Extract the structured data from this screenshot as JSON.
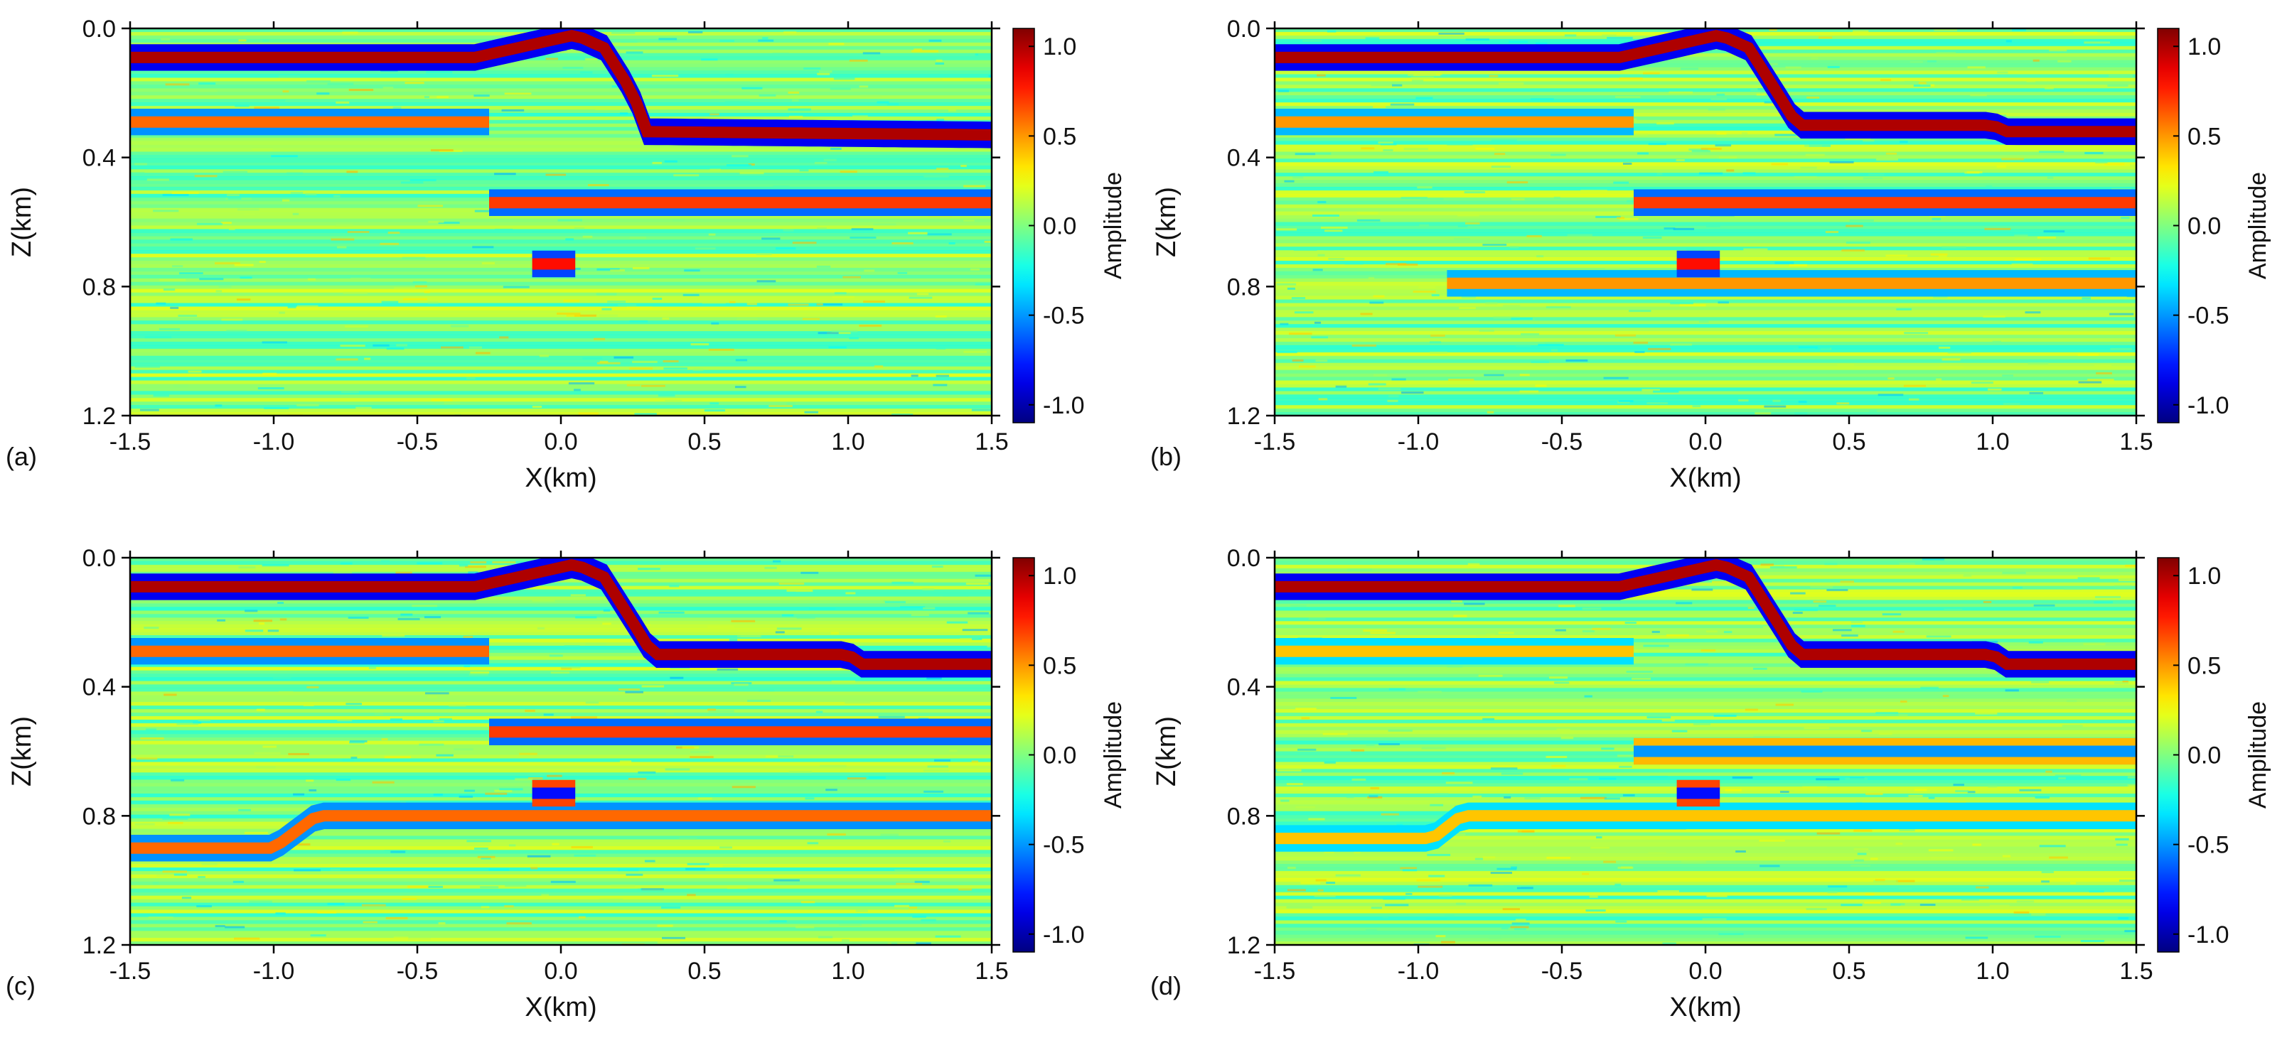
{
  "chart_data": [
    {
      "type": "heatmap",
      "panel_label": "(a)",
      "xlabel": "X(km)",
      "ylabel": "Z(km)",
      "xlim": [
        -1.5,
        1.5
      ],
      "ylim": [
        0.0,
        1.2
      ],
      "x_ticks": [
        "-1.5",
        "-1.0",
        "-0.5",
        "0.0",
        "0.5",
        "1.0",
        "1.5"
      ],
      "y_ticks": [
        "0.0",
        "0.4",
        "0.8",
        "1.2"
      ],
      "colorbar": {
        "label": "Amplitude",
        "range": [
          -1.1,
          1.1
        ],
        "ticks": [
          "1.0",
          "0.5",
          "0.0",
          "-0.5",
          "-1.0"
        ],
        "colormap": "jet"
      },
      "reflectors": [
        {
          "description": "shallow dipping reflector",
          "points": [
            [
              -1.5,
              0.09
            ],
            [
              -0.3,
              0.09
            ],
            [
              -0.1,
              0.05
            ],
            [
              0.05,
              0.02
            ],
            [
              0.15,
              0.06
            ],
            [
              0.25,
              0.2
            ],
            [
              0.3,
              0.32
            ],
            [
              1.5,
              0.33
            ]
          ],
          "amplitude": 1.0
        },
        {
          "description": "reflector below interface",
          "x": [
            -1.5,
            -0.25
          ],
          "z": 0.29,
          "amplitude": 0.6
        },
        {
          "description": "deep flat reflector",
          "x": [
            -0.25,
            1.5
          ],
          "z": 0.54,
          "amplitude": 0.7
        },
        {
          "description": "small lens",
          "x": [
            -0.1,
            0.05
          ],
          "z": 0.73,
          "amplitude": 0.8
        }
      ]
    },
    {
      "type": "heatmap",
      "panel_label": "(b)",
      "xlabel": "X(km)",
      "ylabel": "Z(km)",
      "xlim": [
        -1.5,
        1.5
      ],
      "ylim": [
        0.0,
        1.2
      ],
      "x_ticks": [
        "-1.5",
        "-1.0",
        "-0.5",
        "0.0",
        "0.5",
        "1.0",
        "1.5"
      ],
      "y_ticks": [
        "0.0",
        "0.4",
        "0.8",
        "1.2"
      ],
      "colorbar": {
        "label": "Amplitude",
        "range": [
          -1.1,
          1.1
        ],
        "ticks": [
          "1.0",
          "0.5",
          "0.0",
          "-0.5",
          "-1.0"
        ],
        "colormap": "jet"
      },
      "reflectors": [
        {
          "description": "shallow dipping reflector",
          "points": [
            [
              -1.5,
              0.09
            ],
            [
              -0.3,
              0.09
            ],
            [
              -0.1,
              0.05
            ],
            [
              0.05,
              0.02
            ],
            [
              0.15,
              0.06
            ],
            [
              0.25,
              0.2
            ],
            [
              0.32,
              0.3
            ],
            [
              1.0,
              0.3
            ],
            [
              1.05,
              0.32
            ],
            [
              1.5,
              0.32
            ]
          ],
          "amplitude": 1.0
        },
        {
          "description": "reflector below interface",
          "x": [
            -1.5,
            -0.25
          ],
          "z": 0.29,
          "amplitude": 0.5
        },
        {
          "description": "deep flat reflector",
          "x": [
            -0.25,
            1.5
          ],
          "z": 0.54,
          "amplitude": 0.7
        },
        {
          "description": "deep reflector",
          "x": [
            -0.9,
            1.5
          ],
          "z": 0.79,
          "amplitude": 0.5
        },
        {
          "description": "small lens",
          "x": [
            -0.1,
            0.05
          ],
          "z": 0.73,
          "amplitude": 0.8
        }
      ]
    },
    {
      "type": "heatmap",
      "panel_label": "(c)",
      "xlabel": "X(km)",
      "ylabel": "Z(km)",
      "xlim": [
        -1.5,
        1.5
      ],
      "ylim": [
        0.0,
        1.2
      ],
      "x_ticks": [
        "-1.5",
        "-1.0",
        "-0.5",
        "0.0",
        "0.5",
        "1.0",
        "1.5"
      ],
      "y_ticks": [
        "0.0",
        "0.4",
        "0.8",
        "1.2"
      ],
      "colorbar": {
        "label": "Amplitude",
        "range": [
          -1.1,
          1.1
        ],
        "ticks": [
          "1.0",
          "0.5",
          "0.0",
          "-0.5",
          "-1.0"
        ],
        "colormap": "jet"
      },
      "reflectors": [
        {
          "description": "shallow dipping reflector",
          "points": [
            [
              -1.5,
              0.09
            ],
            [
              -0.3,
              0.09
            ],
            [
              -0.1,
              0.05
            ],
            [
              0.05,
              0.02
            ],
            [
              0.15,
              0.06
            ],
            [
              0.25,
              0.2
            ],
            [
              0.32,
              0.3
            ],
            [
              1.0,
              0.3
            ],
            [
              1.05,
              0.33
            ],
            [
              1.5,
              0.33
            ]
          ],
          "amplitude": 1.0
        },
        {
          "description": "reflector below interface",
          "x": [
            -1.5,
            -0.25
          ],
          "z": 0.29,
          "amplitude": 0.6
        },
        {
          "description": "deep flat reflector",
          "x": [
            -0.25,
            1.5
          ],
          "z": 0.54,
          "amplitude": 0.7
        },
        {
          "description": "dipping deep reflector",
          "points": [
            [
              -1.5,
              0.9
            ],
            [
              -1.0,
              0.9
            ],
            [
              -0.85,
              0.8
            ],
            [
              1.5,
              0.8
            ]
          ],
          "amplitude": 0.6
        },
        {
          "description": "small lens",
          "x": [
            -0.1,
            0.05
          ],
          "z": 0.73,
          "amplitude": -0.8
        }
      ]
    },
    {
      "type": "heatmap",
      "panel_label": "(d)",
      "xlabel": "X(km)",
      "ylabel": "Z(km)",
      "xlim": [
        -1.5,
        1.5
      ],
      "ylim": [
        0.0,
        1.2
      ],
      "x_ticks": [
        "-1.5",
        "-1.0",
        "-0.5",
        "0.0",
        "0.5",
        "1.0",
        "1.5"
      ],
      "y_ticks": [
        "0.0",
        "0.4",
        "0.8",
        "1.2"
      ],
      "colorbar": {
        "label": "Amplitude",
        "range": [
          -1.1,
          1.1
        ],
        "ticks": [
          "1.0",
          "0.5",
          "0.0",
          "-0.5",
          "-1.0"
        ],
        "colormap": "jet"
      },
      "reflectors": [
        {
          "description": "shallow dipping reflector",
          "points": [
            [
              -1.5,
              0.09
            ],
            [
              -0.3,
              0.09
            ],
            [
              -0.1,
              0.05
            ],
            [
              0.05,
              0.02
            ],
            [
              0.15,
              0.06
            ],
            [
              0.25,
              0.2
            ],
            [
              0.32,
              0.3
            ],
            [
              1.0,
              0.3
            ],
            [
              1.05,
              0.33
            ],
            [
              1.5,
              0.33
            ]
          ],
          "amplitude": 1.0
        },
        {
          "description": "reflector below interface",
          "x": [
            -1.5,
            -0.25
          ],
          "z": 0.29,
          "amplitude": 0.4
        },
        {
          "description": "deep flat reflector",
          "x": [
            -0.25,
            1.5
          ],
          "z": 0.6,
          "amplitude": -0.5
        },
        {
          "description": "dipping deep reflector",
          "points": [
            [
              -1.5,
              0.87
            ],
            [
              -0.95,
              0.87
            ],
            [
              -0.85,
              0.8
            ],
            [
              1.5,
              0.8
            ]
          ],
          "amplitude": 0.4
        },
        {
          "description": "small lens",
          "x": [
            -0.1,
            0.05
          ],
          "z": 0.73,
          "amplitude": -0.8
        }
      ]
    }
  ]
}
